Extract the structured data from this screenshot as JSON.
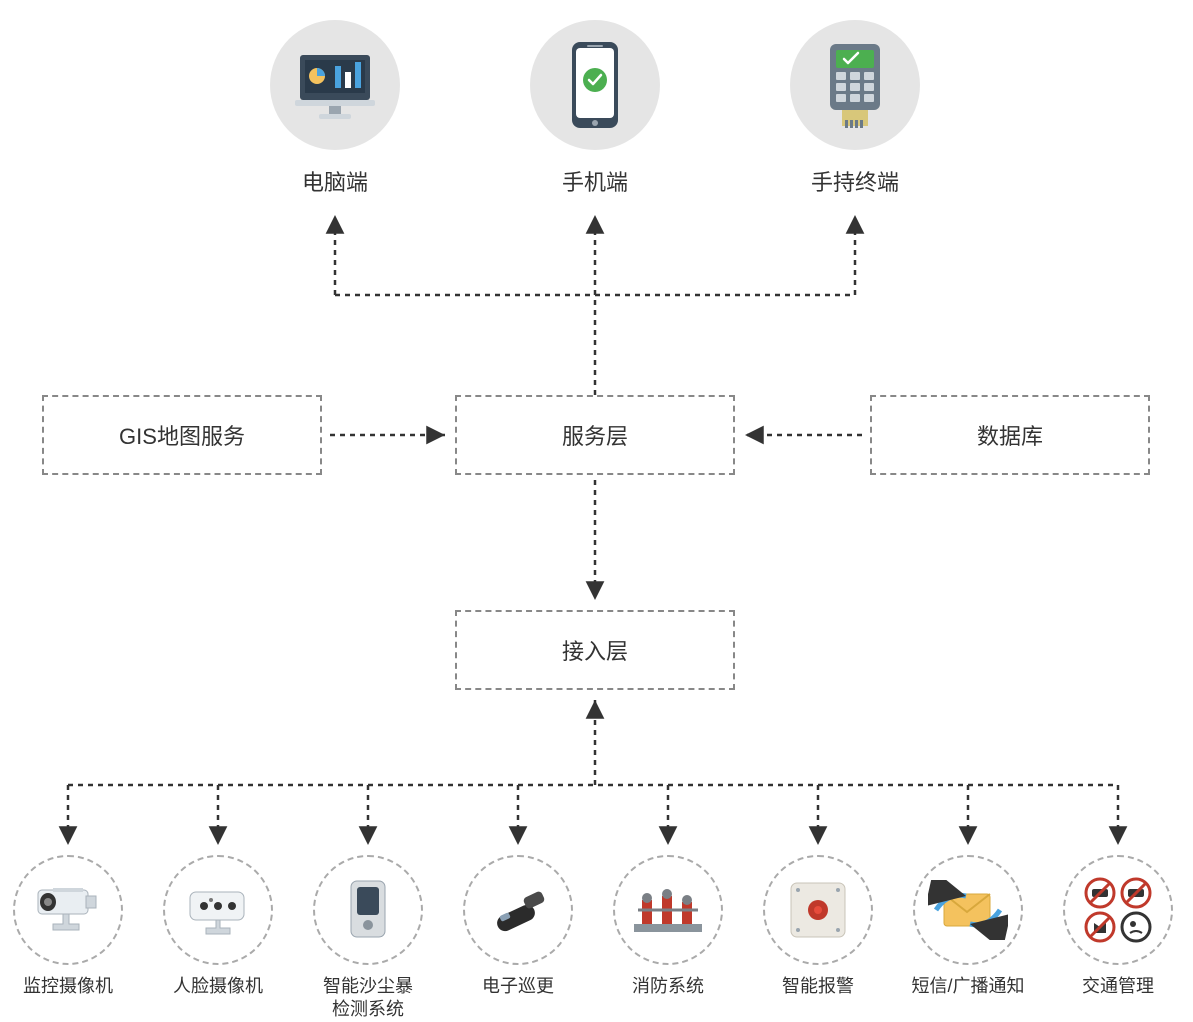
{
  "diagram": {
    "type": "flowchart",
    "background_color": "#ffffff",
    "dashed_border_color": "#888888",
    "arrow_color": "#333333",
    "label_color": "#333333",
    "top_circle_fill": "#e5e5e5",
    "bottom_circle_border": "#aaaaaa",
    "top_label_fontsize": 22,
    "box_label_fontsize": 22,
    "bottom_label_fontsize": 18
  },
  "top": {
    "items": [
      {
        "label": "电脑端",
        "icon": "desktop"
      },
      {
        "label": "手机端",
        "icon": "phone"
      },
      {
        "label": "手持终端",
        "icon": "pos"
      }
    ]
  },
  "middle": {
    "gis": {
      "label": "GIS地图服务"
    },
    "service": {
      "label": "服务层"
    },
    "database": {
      "label": "数据库"
    },
    "access": {
      "label": "接入层"
    }
  },
  "bottom": {
    "items": [
      {
        "label": "监控摄像机",
        "icon": "cctv"
      },
      {
        "label": "人脸摄像机",
        "icon": "facecam"
      },
      {
        "label": "智能沙尘暴\n检测系统",
        "icon": "sensor"
      },
      {
        "label": "电子巡更",
        "icon": "patrol"
      },
      {
        "label": "消防系统",
        "icon": "fire"
      },
      {
        "label": "智能报警",
        "icon": "alarm"
      },
      {
        "label": "短信/广播通知",
        "icon": "message"
      },
      {
        "label": "交通管理",
        "icon": "traffic"
      }
    ]
  }
}
